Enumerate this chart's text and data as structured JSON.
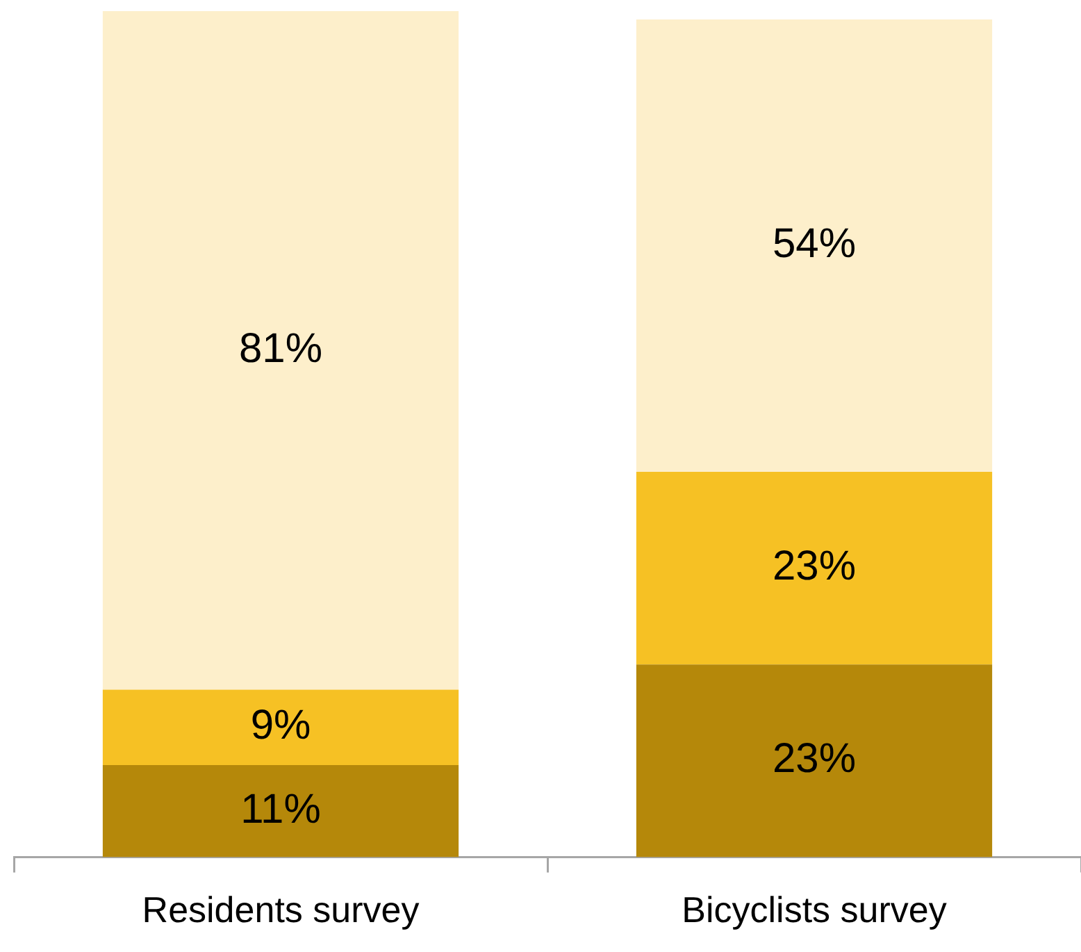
{
  "chart_data": {
    "type": "bar",
    "stacked": true,
    "categories": [
      "Residents survey",
      "Bicyclists survey"
    ],
    "series": [
      {
        "color": "#b5880a",
        "values": [
          11,
          23
        ],
        "value_labels": [
          "11%",
          "23%"
        ]
      },
      {
        "color": "#f6c124",
        "values": [
          9,
          23
        ],
        "value_labels": [
          "9%",
          "23%"
        ]
      },
      {
        "color": "#fdefcb",
        "values": [
          81,
          54
        ],
        "value_labels": [
          "81%",
          "54%"
        ]
      }
    ],
    "grid": false,
    "legend": false,
    "tick_labels": "x"
  }
}
